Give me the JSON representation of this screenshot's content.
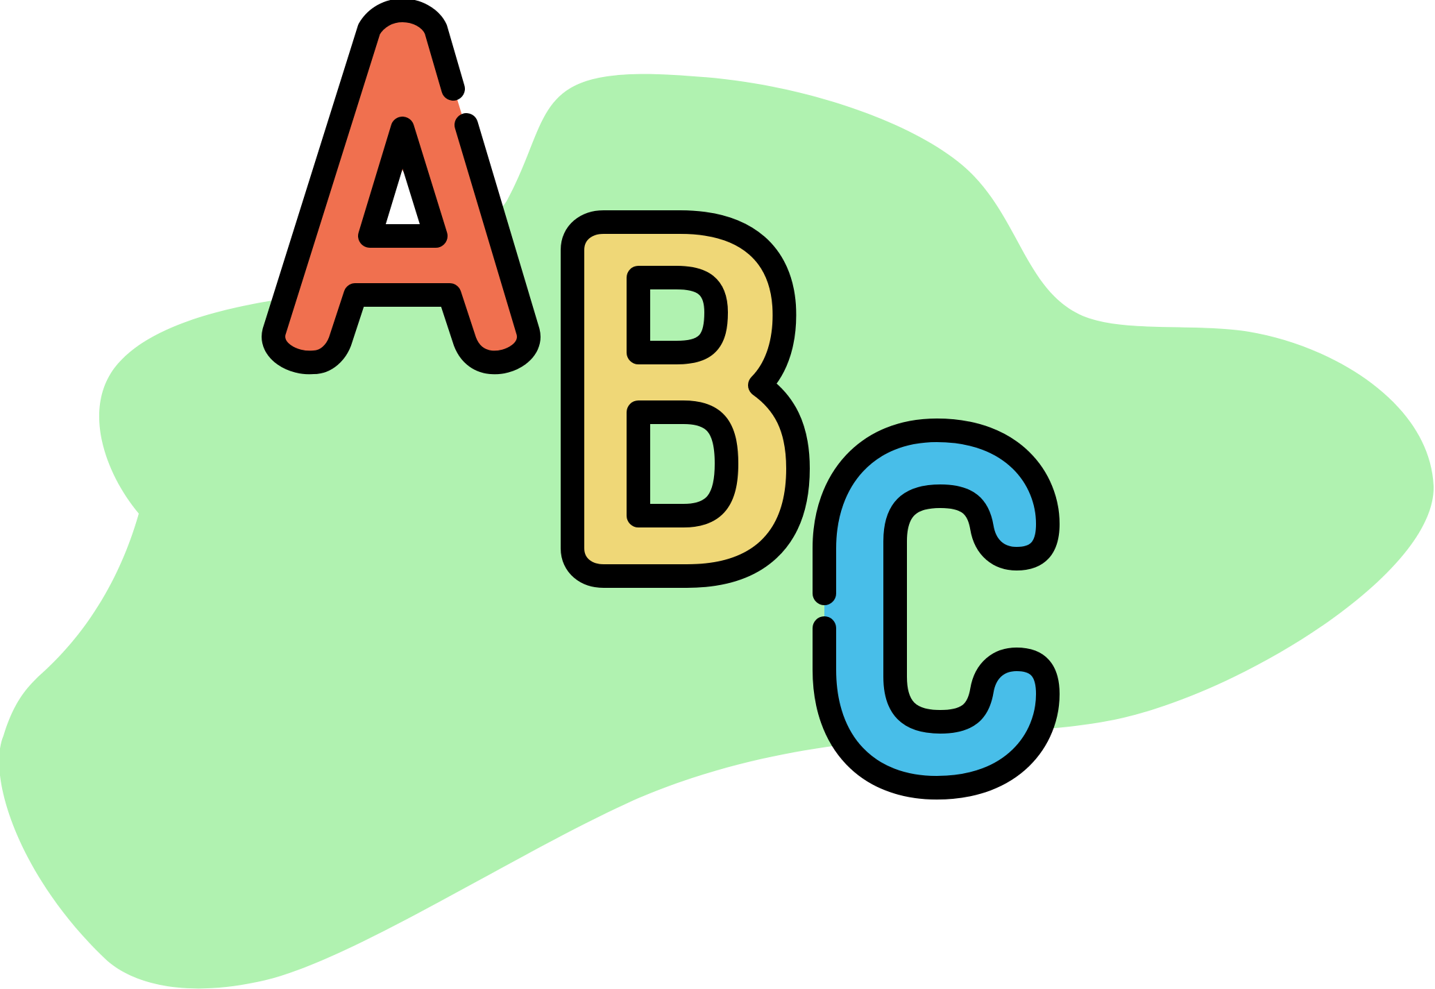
{
  "illustration": {
    "subject": "alphabet-blocks-icon",
    "letters": [
      {
        "glyph": "A",
        "icon": "letter-a-icon",
        "fill": "#f0704f"
      },
      {
        "glyph": "B",
        "icon": "letter-b-icon",
        "fill": "#efd777"
      },
      {
        "glyph": "C",
        "icon": "letter-c-icon",
        "fill": "#48bee9"
      }
    ]
  },
  "colors": {
    "background": "#ffffff",
    "blob": "#b0f2b0",
    "outline": "#000000",
    "counter": "#ffffff"
  }
}
